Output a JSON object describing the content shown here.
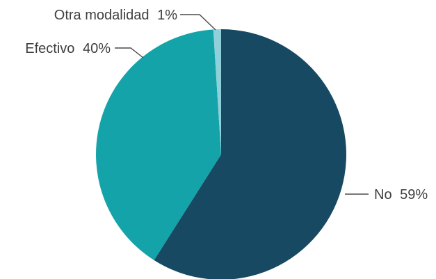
{
  "chart_data": {
    "type": "pie",
    "title": "",
    "slices": [
      {
        "label": "No",
        "value": 59,
        "value_text": "59%",
        "color": "#174a62"
      },
      {
        "label": "Efectivo",
        "value": 40,
        "value_text": "40%",
        "color": "#13a3a8"
      },
      {
        "label": "Otra modalidad",
        "value": 1,
        "value_text": "1%",
        "color": "#8fd0da"
      }
    ],
    "start_angle_deg": 0,
    "direction": "clockwise",
    "data_labels": "outside with leader lines",
    "legend": "none"
  }
}
